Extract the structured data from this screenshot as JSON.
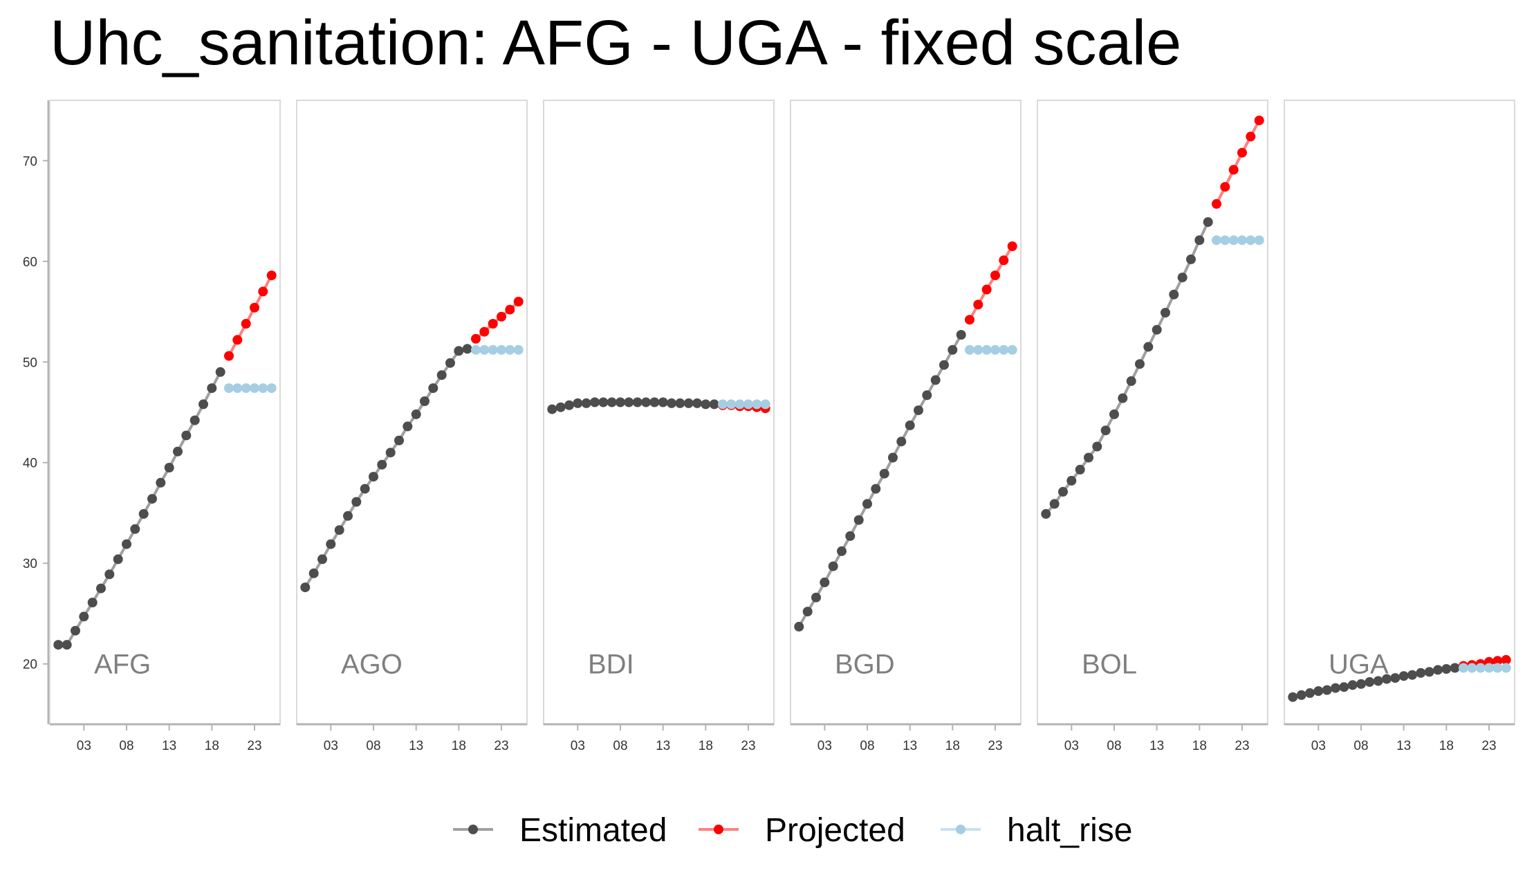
{
  "chart_data": {
    "type": "line",
    "title": "Uhc_sanitation: AFG - UGA - fixed scale",
    "xlabel": "",
    "ylabel": "",
    "ylim": [
      14,
      76
    ],
    "xlim": [
      1999,
      2026
    ],
    "yticks": [
      20,
      30,
      40,
      50,
      60,
      70
    ],
    "xticks": [
      2003,
      2008,
      2013,
      2018,
      2023
    ],
    "xtick_labels": [
      "03",
      "08",
      "13",
      "18",
      "23"
    ],
    "grid": false,
    "legend": {
      "position": "bottom",
      "entries": [
        "Estimated",
        "Projected",
        "halt_rise"
      ]
    },
    "colors": {
      "Estimated": "#4d4d4d",
      "Projected": "#ff0000",
      "halt_rise": "#a6cee3",
      "Estimated_line": "#a0a0a0",
      "Projected_line": "#ff8080",
      "halt_rise_line": "#c8e2ee",
      "panel_border": "#d9d9d9",
      "axis": "#b3b3b3",
      "panel_label": "#7f7f7f"
    },
    "panels": [
      {
        "name": "AFG",
        "estimated": {
          "x": [
            2000,
            2001,
            2002,
            2003,
            2004,
            2005,
            2006,
            2007,
            2008,
            2009,
            2010,
            2011,
            2012,
            2013,
            2014,
            2015,
            2016,
            2017,
            2018,
            2019
          ],
          "y": [
            21.9,
            21.9,
            23.3,
            24.7,
            26.1,
            27.5,
            28.9,
            30.4,
            31.9,
            33.4,
            34.9,
            36.4,
            38.0,
            39.5,
            41.1,
            42.7,
            44.2,
            45.8,
            47.4,
            49.0
          ]
        },
        "projected": {
          "x": [
            2020,
            2021,
            2022,
            2023,
            2024,
            2025
          ],
          "y": [
            50.6,
            52.2,
            53.8,
            55.4,
            57.0,
            58.6
          ]
        },
        "halt_rise": {
          "x": [
            2020,
            2021,
            2022,
            2023,
            2024,
            2025
          ],
          "y": [
            47.4,
            47.4,
            47.4,
            47.4,
            47.4,
            47.4
          ]
        }
      },
      {
        "name": "AGO",
        "estimated": {
          "x": [
            2000,
            2001,
            2002,
            2003,
            2004,
            2005,
            2006,
            2007,
            2008,
            2009,
            2010,
            2011,
            2012,
            2013,
            2014,
            2015,
            2016,
            2017,
            2018,
            2019
          ],
          "y": [
            27.6,
            29.0,
            30.4,
            31.9,
            33.3,
            34.7,
            36.1,
            37.4,
            38.6,
            39.8,
            41.0,
            42.2,
            43.6,
            44.8,
            46.1,
            47.4,
            48.7,
            49.9,
            51.1,
            51.3
          ]
        },
        "projected": {
          "x": [
            2020,
            2021,
            2022,
            2023,
            2024,
            2025
          ],
          "y": [
            52.3,
            53.0,
            53.8,
            54.5,
            55.2,
            56.0
          ]
        },
        "halt_rise": {
          "x": [
            2020,
            2021,
            2022,
            2023,
            2024,
            2025
          ],
          "y": [
            51.2,
            51.2,
            51.2,
            51.2,
            51.2,
            51.2
          ]
        }
      },
      {
        "name": "BDI",
        "estimated": {
          "x": [
            2000,
            2001,
            2002,
            2003,
            2004,
            2005,
            2006,
            2007,
            2008,
            2009,
            2010,
            2011,
            2012,
            2013,
            2014,
            2015,
            2016,
            2017,
            2018,
            2019
          ],
          "y": [
            45.3,
            45.5,
            45.7,
            45.9,
            45.9,
            46.0,
            46.0,
            46.0,
            46.0,
            46.0,
            46.0,
            46.0,
            46.0,
            46.0,
            45.9,
            45.9,
            45.9,
            45.9,
            45.8,
            45.8
          ]
        },
        "projected": {
          "x": [
            2020,
            2021,
            2022,
            2023,
            2024,
            2025
          ],
          "y": [
            45.7,
            45.7,
            45.6,
            45.6,
            45.5,
            45.4
          ]
        },
        "halt_rise": {
          "x": [
            2020,
            2021,
            2022,
            2023,
            2024,
            2025
          ],
          "y": [
            45.8,
            45.8,
            45.8,
            45.8,
            45.8,
            45.8
          ]
        }
      },
      {
        "name": "BGD",
        "estimated": {
          "x": [
            2000,
            2001,
            2002,
            2003,
            2004,
            2005,
            2006,
            2007,
            2008,
            2009,
            2010,
            2011,
            2012,
            2013,
            2014,
            2015,
            2016,
            2017,
            2018,
            2019
          ],
          "y": [
            23.7,
            25.2,
            26.6,
            28.1,
            29.7,
            31.2,
            32.7,
            34.3,
            35.9,
            37.4,
            38.9,
            40.5,
            42.1,
            43.7,
            45.2,
            46.7,
            48.2,
            49.7,
            51.2,
            52.7
          ]
        },
        "projected": {
          "x": [
            2020,
            2021,
            2022,
            2023,
            2024,
            2025
          ],
          "y": [
            54.2,
            55.7,
            57.2,
            58.6,
            60.1,
            61.5
          ]
        },
        "halt_rise": {
          "x": [
            2020,
            2021,
            2022,
            2023,
            2024,
            2025
          ],
          "y": [
            51.2,
            51.2,
            51.2,
            51.2,
            51.2,
            51.2
          ]
        }
      },
      {
        "name": "BOL",
        "estimated": {
          "x": [
            2000,
            2001,
            2002,
            2003,
            2004,
            2005,
            2006,
            2007,
            2008,
            2009,
            2010,
            2011,
            2012,
            2013,
            2014,
            2015,
            2016,
            2017,
            2018,
            2019
          ],
          "y": [
            34.9,
            35.9,
            37.1,
            38.2,
            39.3,
            40.5,
            41.6,
            43.2,
            44.8,
            46.4,
            48.1,
            49.8,
            51.5,
            53.2,
            54.9,
            56.7,
            58.4,
            60.2,
            62.1,
            63.9
          ]
        },
        "projected": {
          "x": [
            2020,
            2021,
            2022,
            2023,
            2024,
            2025
          ],
          "y": [
            65.7,
            67.4,
            69.1,
            70.8,
            72.4,
            74.0
          ]
        },
        "halt_rise": {
          "x": [
            2020,
            2021,
            2022,
            2023,
            2024,
            2025
          ],
          "y": [
            62.1,
            62.1,
            62.1,
            62.1,
            62.1,
            62.1
          ]
        }
      },
      {
        "name": "UGA",
        "estimated": {
          "x": [
            2000,
            2001,
            2002,
            2003,
            2004,
            2005,
            2006,
            2007,
            2008,
            2009,
            2010,
            2011,
            2012,
            2013,
            2014,
            2015,
            2016,
            2017,
            2018,
            2019
          ],
          "y": [
            16.7,
            16.9,
            17.1,
            17.3,
            17.4,
            17.6,
            17.7,
            17.9,
            18.0,
            18.2,
            18.3,
            18.5,
            18.6,
            18.8,
            18.9,
            19.1,
            19.2,
            19.4,
            19.5,
            19.6
          ]
        },
        "projected": {
          "x": [
            2020,
            2021,
            2022,
            2023,
            2024,
            2025
          ],
          "y": [
            19.8,
            19.9,
            20.0,
            20.2,
            20.3,
            20.4
          ]
        },
        "halt_rise": {
          "x": [
            2020,
            2021,
            2022,
            2023,
            2024,
            2025
          ],
          "y": [
            19.6,
            19.6,
            19.6,
            19.6,
            19.6,
            19.6
          ]
        }
      }
    ]
  }
}
